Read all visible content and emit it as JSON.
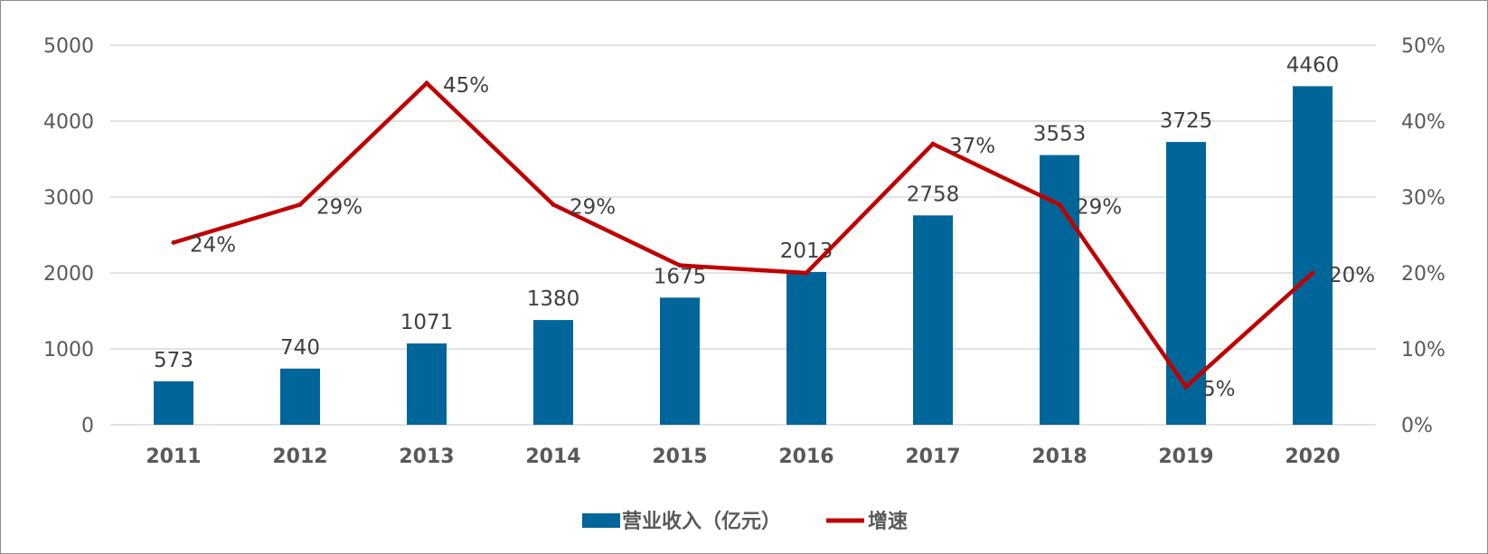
{
  "chart_data": {
    "type": "bar",
    "categories": [
      "2011",
      "2012",
      "2013",
      "2014",
      "2015",
      "2016",
      "2017",
      "2018",
      "2019",
      "2020"
    ],
    "series": [
      {
        "name": "营业收入（亿元）",
        "kind": "bar",
        "axis": "left",
        "values": [
          573,
          740,
          1071,
          1380,
          1675,
          2013,
          2758,
          3553,
          3725,
          4460
        ],
        "labels": [
          "573",
          "740",
          "1071",
          "1380",
          "1675",
          "2013",
          "2758",
          "3553",
          "3725",
          "4460"
        ]
      },
      {
        "name": "增速",
        "kind": "line",
        "axis": "right",
        "values": [
          24,
          29,
          45,
          29,
          21,
          20,
          37,
          29,
          5,
          20
        ],
        "labels": [
          "24%",
          "29%",
          "45%",
          "29%",
          "",
          "",
          "37%",
          "29%",
          "5%",
          "20%"
        ]
      }
    ],
    "y_left": {
      "ylim": [
        0,
        5000
      ],
      "ticks": [
        "0",
        "1000",
        "2000",
        "3000",
        "4000",
        "5000"
      ]
    },
    "y_right": {
      "ylim": [
        0,
        50
      ],
      "ticks": [
        "0%",
        "10%",
        "20%",
        "30%",
        "40%",
        "50%"
      ]
    },
    "grid": true,
    "legend": "bottom-center",
    "colors": {
      "bar": "#006699",
      "line": "#C00000",
      "grid": "#d9d9d9"
    }
  }
}
